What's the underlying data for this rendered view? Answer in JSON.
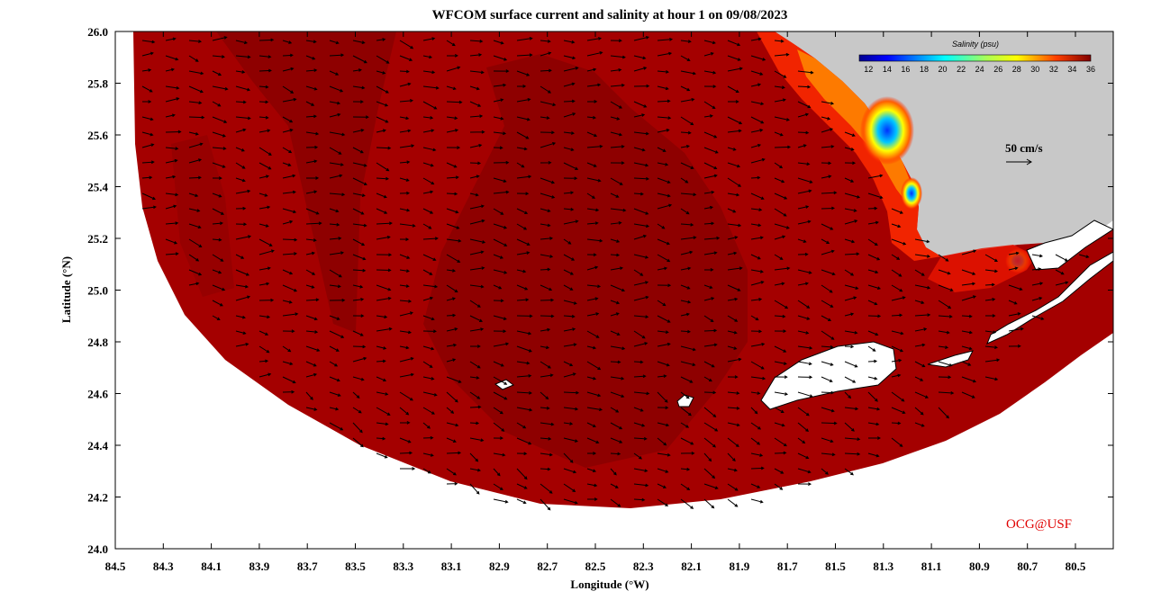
{
  "title": "WFCOM surface current and salinity at hour 1 on 09/08/2023",
  "axes": {
    "xlabel": "Longitude (°W)",
    "ylabel": "Latitude (°N)",
    "xticks": [
      "84.5",
      "84.3",
      "84.1",
      "83.9",
      "83.7",
      "83.5",
      "83.3",
      "83.1",
      "82.9",
      "82.7",
      "82.5",
      "82.3",
      "82.1",
      "81.9",
      "81.7",
      "81.5",
      "81.3",
      "81.1",
      "80.9",
      "80.7",
      "80.5"
    ],
    "yticks": [
      "26.0",
      "25.8",
      "25.6",
      "25.4",
      "25.2",
      "25.0",
      "24.8",
      "24.6",
      "24.4",
      "24.2",
      "24.0"
    ],
    "xlim": [
      84.5,
      80.4
    ],
    "ylim": [
      24.0,
      26.0
    ]
  },
  "colorbar": {
    "title": "Salinity (psu)",
    "ticks": [
      "12",
      "14",
      "16",
      "18",
      "20",
      "22",
      "24",
      "26",
      "28",
      "30",
      "32",
      "34",
      "36"
    ],
    "range": [
      11,
      36
    ]
  },
  "scale_vector": {
    "label": "50 cm/s",
    "speed_cm_s": 50
  },
  "credit": "OCG@USF",
  "colors": {
    "land": "#c8c8c8",
    "sea_base": "#a40000",
    "sea_dark": "#8a0000",
    "credit": "#e00000"
  }
}
